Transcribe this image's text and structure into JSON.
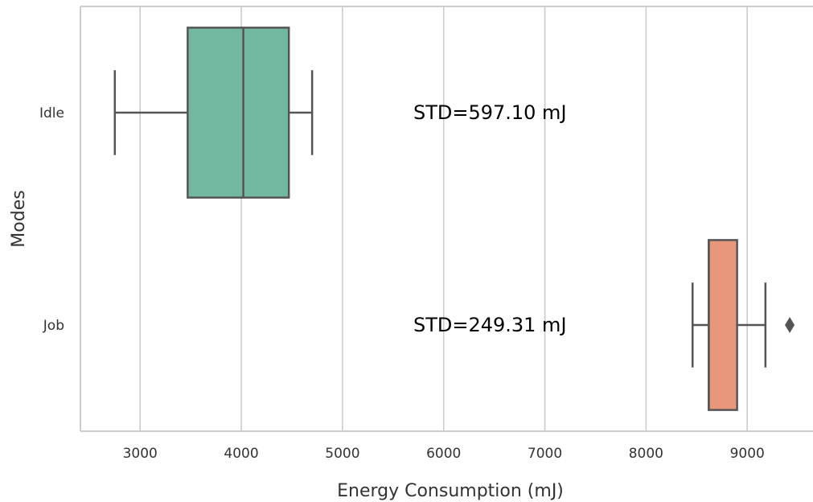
{
  "chart_data": {
    "type": "box",
    "orientation": "horizontal",
    "xlabel": "Energy Consumption (mJ)",
    "ylabel": "Modes",
    "xlim": [
      2410,
      9650
    ],
    "xticks": [
      3000,
      4000,
      5000,
      6000,
      7000,
      8000,
      9000
    ],
    "xtick_labels": [
      "3000",
      "4000",
      "5000",
      "6000",
      "7000",
      "8000",
      "9000"
    ],
    "grid": "vertical",
    "categories": [
      "Idle",
      "Job"
    ],
    "boxes": [
      {
        "category": "Idle",
        "whisker_low": 2750,
        "q1": 3470,
        "median": 4020,
        "q3": 4470,
        "whisker_high": 4700,
        "outliers": [],
        "color": "#72b8a1",
        "annotation": "STD=597.10 mJ"
      },
      {
        "category": "Job",
        "whisker_low": 8460,
        "q1": 8620,
        "median": 8620,
        "q3": 8900,
        "whisker_high": 9180,
        "outliers": [
          9420
        ],
        "color": "#e8977a",
        "annotation": "STD=249.31 mJ"
      }
    ],
    "annotation_x": 5700,
    "edge_color": "#555555",
    "grid_color": "#cccccc"
  }
}
